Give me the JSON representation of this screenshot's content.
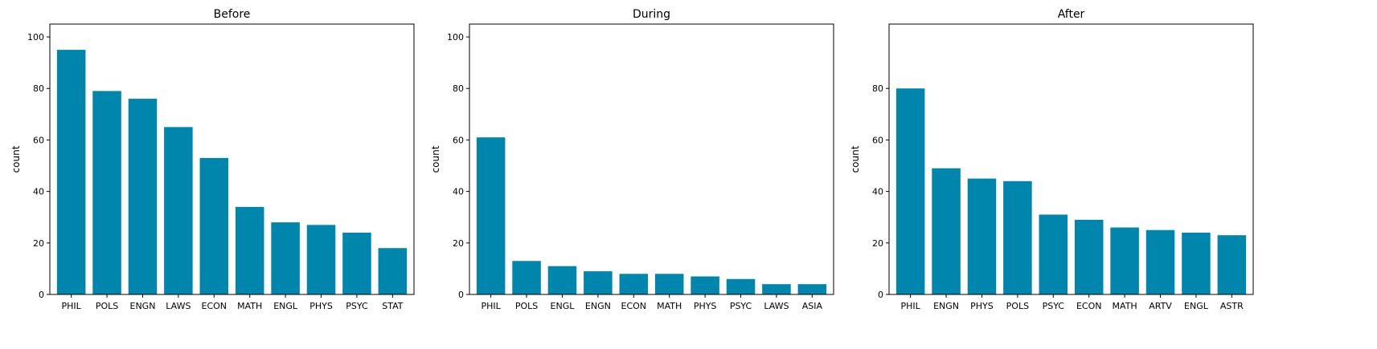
{
  "colors": {
    "bar": "#0086ad",
    "axis": "#000000",
    "background": "#ffffff"
  },
  "chart_data": [
    {
      "type": "bar",
      "title": "Before",
      "xlabel": "",
      "ylabel": "count",
      "ylim": [
        0,
        105
      ],
      "yticks": [
        0,
        20,
        40,
        60,
        80,
        100
      ],
      "grid": false,
      "categories": [
        "PHIL",
        "POLS",
        "ENGN",
        "LAWS",
        "ECON",
        "MATH",
        "ENGL",
        "PHYS",
        "PSYC",
        "STAT"
      ],
      "values": [
        95,
        79,
        76,
        65,
        53,
        34,
        28,
        27,
        24,
        18
      ]
    },
    {
      "type": "bar",
      "title": "During",
      "xlabel": "",
      "ylabel": "count",
      "ylim": [
        0,
        105
      ],
      "yticks": [
        0,
        20,
        40,
        60,
        80,
        100
      ],
      "grid": false,
      "categories": [
        "PHIL",
        "POLS",
        "ENGL",
        "ENGN",
        "ECON",
        "MATH",
        "PHYS",
        "PSYC",
        "LAWS",
        "ASIA"
      ],
      "values": [
        61,
        13,
        11,
        9,
        8,
        8,
        7,
        6,
        4,
        4
      ]
    },
    {
      "type": "bar",
      "title": "After",
      "xlabel": "",
      "ylabel": "count",
      "ylim": [
        0,
        105
      ],
      "yticks": [
        0,
        20,
        40,
        60,
        80
      ],
      "grid": false,
      "categories": [
        "PHIL",
        "ENGN",
        "PHYS",
        "POLS",
        "PSYC",
        "ECON",
        "MATH",
        "ARTV",
        "ENGL",
        "ASTR"
      ],
      "values": [
        80,
        49,
        45,
        44,
        31,
        29,
        26,
        25,
        24,
        23
      ]
    }
  ]
}
